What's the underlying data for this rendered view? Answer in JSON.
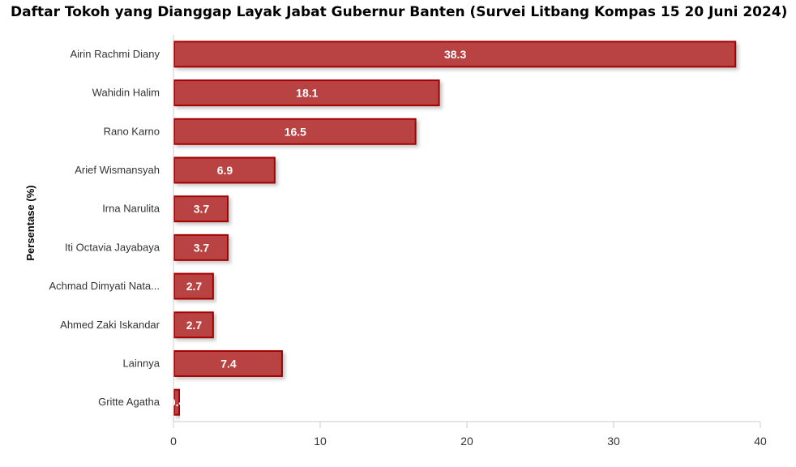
{
  "chart_data": {
    "type": "bar",
    "orientation": "horizontal",
    "title": "Daftar Tokoh yang Dianggap Layak Jabat Gubernur Banten (Survei Litbang Kompas 15 20 Juni 2024)",
    "ylabel": "Persentase (%)",
    "xlabel": "",
    "categories": [
      "Airin Rachmi Diany",
      "Wahidin Halim",
      "Rano Karno",
      "Arief Wismansyah",
      "Irna Narulita",
      "Iti Octavia Jayabaya",
      "Achmad Dimyati Nata...",
      "Ahmed Zaki Iskandar",
      "Lainnya",
      "Gritte Agatha"
    ],
    "values": [
      38.3,
      18.1,
      16.5,
      6.9,
      3.7,
      3.7,
      2.7,
      2.7,
      7.4,
      0.4
    ],
    "value_labels": [
      "38.3",
      "18.1",
      "16.5",
      "6.9",
      "3.7",
      "3.7",
      "2.7",
      "2.7",
      "7.4",
      "0.4"
    ],
    "xlim": [
      0,
      40
    ],
    "x_ticks": [
      "0",
      "10",
      "20",
      "30",
      "40"
    ],
    "grid": false,
    "legend": "none",
    "colors": {
      "bar_fill": "#b94242",
      "bar_border": "#a30000",
      "axis": "#cccccc"
    }
  }
}
